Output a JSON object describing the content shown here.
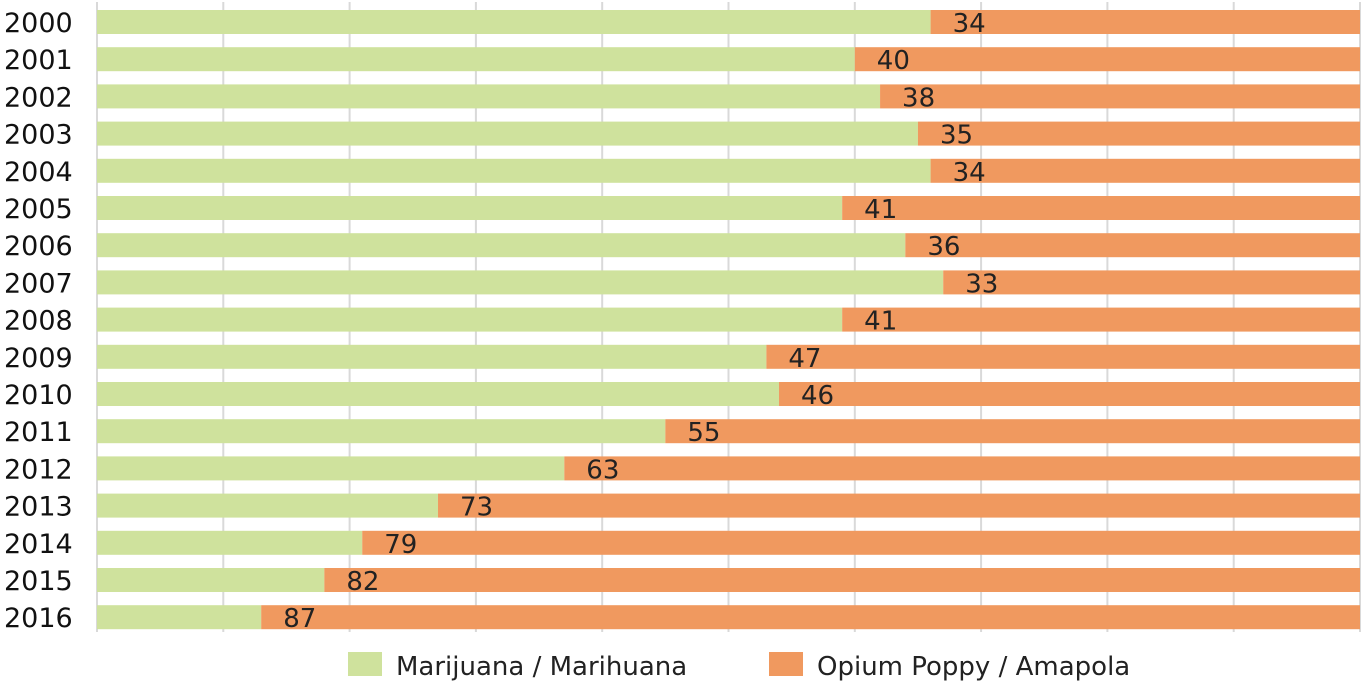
{
  "chart_data": {
    "type": "bar",
    "orientation": "horizontal",
    "stacking": "percent",
    "categories": [
      "2000",
      "2001",
      "2002",
      "2003",
      "2004",
      "2005",
      "2006",
      "2007",
      "2008",
      "2009",
      "2010",
      "2011",
      "2012",
      "2013",
      "2014",
      "2015",
      "2016"
    ],
    "series": [
      {
        "name": "Marijuana / Marihuana",
        "values": [
          66,
          60,
          62,
          65,
          66,
          59,
          64,
          67,
          59,
          53,
          54,
          45,
          37,
          27,
          21,
          18,
          13
        ],
        "color": "#cfe29d"
      },
      {
        "name": "Opium Poppy / Amapola",
        "values": [
          34,
          40,
          38,
          35,
          34,
          41,
          36,
          33,
          41,
          47,
          46,
          55,
          63,
          73,
          79,
          82,
          87
        ],
        "color": "#f0995f"
      }
    ],
    "data_labels": [
      "34",
      "40",
      "38",
      "35",
      "34",
      "41",
      "36",
      "33",
      "41",
      "47",
      "46",
      "55",
      "63",
      "73",
      "79",
      "82",
      "87"
    ],
    "xlim": [
      0,
      100
    ],
    "grid": "vertical",
    "legend_position": "bottom-center"
  }
}
